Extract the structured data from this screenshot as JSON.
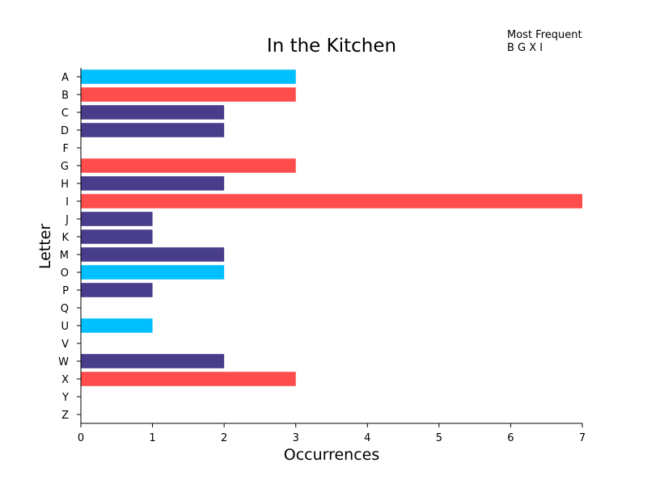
{
  "chart_data": {
    "type": "bar",
    "orientation": "horizontal",
    "title": "In the Kitchen",
    "xlabel": "Occurrences",
    "ylabel": "Letter",
    "xlim": [
      0,
      7
    ],
    "x_ticks": [
      0,
      1,
      2,
      3,
      4,
      5,
      6,
      7
    ],
    "grid": false,
    "categories": [
      "A",
      "B",
      "C",
      "D",
      "F",
      "G",
      "H",
      "I",
      "J",
      "K",
      "M",
      "O",
      "P",
      "Q",
      "U",
      "V",
      "W",
      "X",
      "Y",
      "Z"
    ],
    "values": [
      3,
      3,
      2,
      2,
      0,
      3,
      2,
      7,
      1,
      1,
      2,
      2,
      1,
      0,
      1,
      0,
      2,
      3,
      0,
      0
    ],
    "bar_groups": [
      "vowel",
      "most-frequent",
      "consonant",
      "consonant",
      "consonant",
      "most-frequent",
      "consonant",
      "most-frequent",
      "consonant",
      "consonant",
      "consonant",
      "vowel",
      "consonant",
      "consonant",
      "vowel",
      "consonant",
      "consonant",
      "most-frequent",
      "consonant",
      "consonant"
    ],
    "colors": {
      "vowel": "#00bfff",
      "most-frequent": "#ff4c4c",
      "consonant": "#483d8b"
    },
    "annotation": {
      "heading": "Most Frequent",
      "letters": "B G X I",
      "placement": "top-right"
    }
  }
}
